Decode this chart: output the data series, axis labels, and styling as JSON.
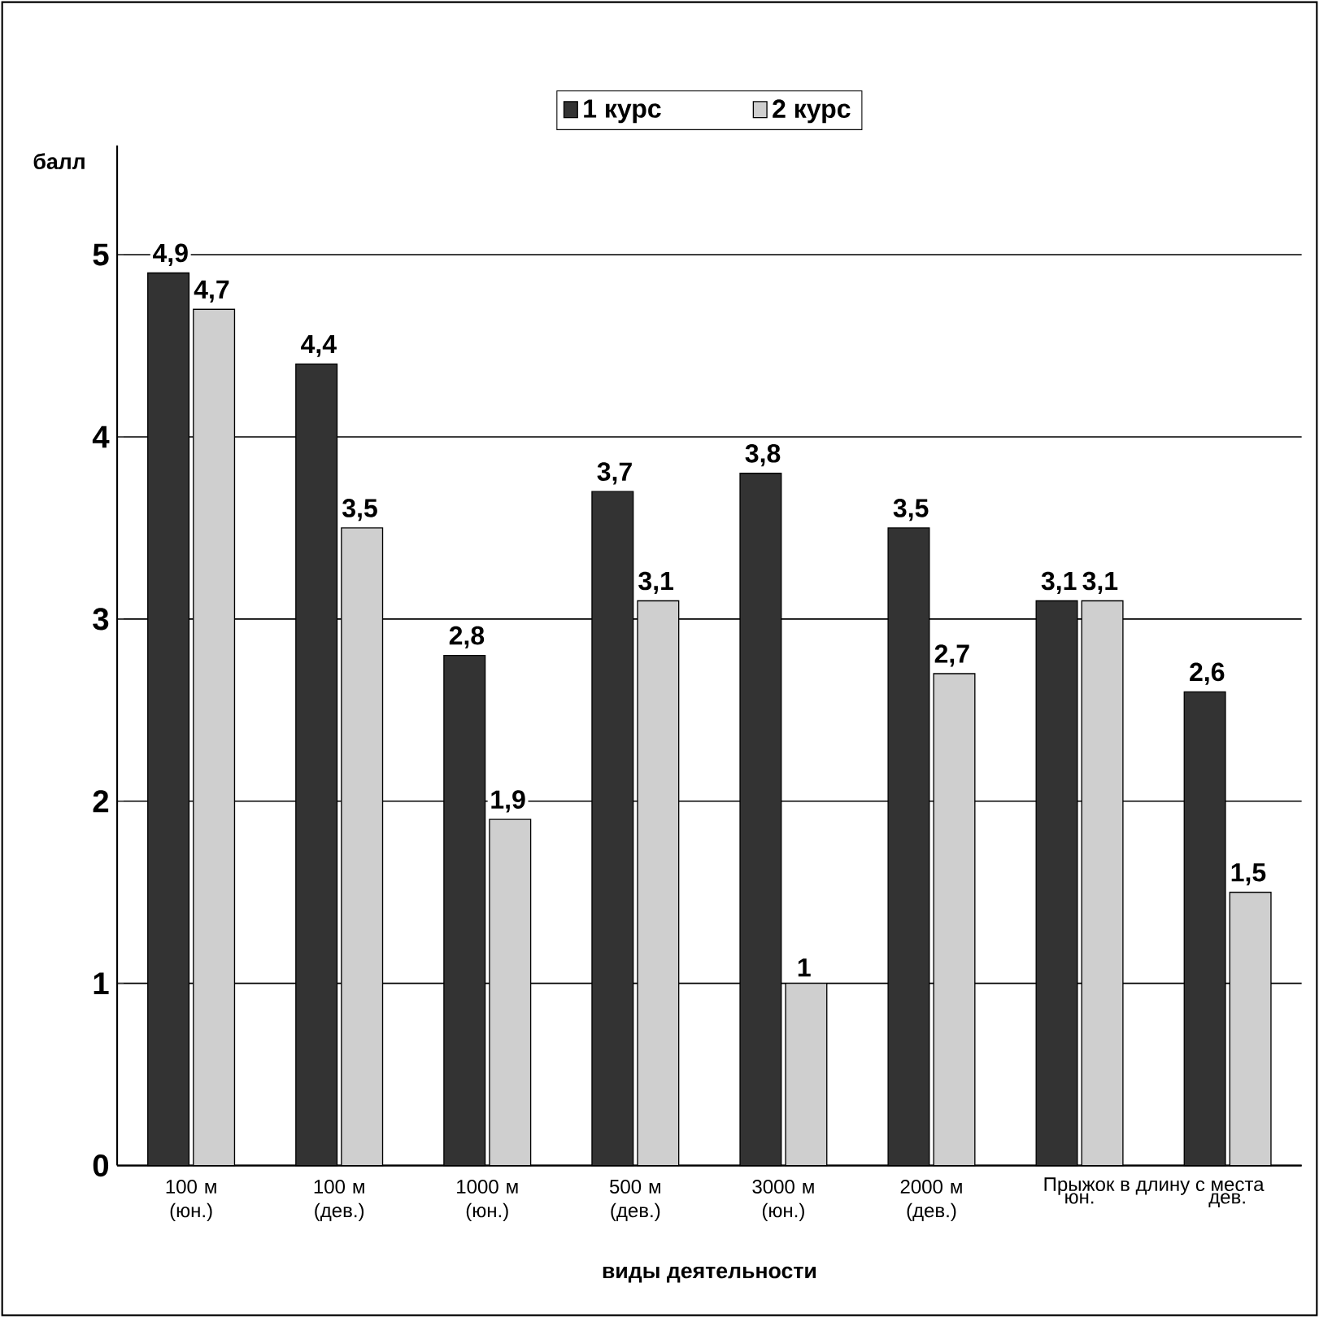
{
  "chart_data": {
    "type": "bar",
    "xlabel": "виды деятельности",
    "ylabel": "балл",
    "categories": [
      "100 м (юн.)",
      "100 м (дев.)",
      "1000 м (юн.)",
      "500 м (дев.)",
      "3000 м (юн.)",
      "2000 м (дев.)",
      "юн.",
      "дев."
    ],
    "series": [
      {
        "name": "1 курс",
        "color": "#333333",
        "values": [
          4.9,
          4.4,
          2.8,
          3.7,
          3.8,
          3.5,
          3.1,
          2.6
        ],
        "value_labels": [
          "4,9",
          "4,4",
          "2,8",
          "3,7",
          "3,8",
          "3,5",
          "3,1",
          "2,6"
        ]
      },
      {
        "name": "2 курс",
        "color": "#cfcfcf",
        "values": [
          4.7,
          3.5,
          1.9,
          3.1,
          1,
          2.7,
          3.1,
          1.5
        ],
        "value_labels": [
          "4,7",
          "3,5",
          "1,9",
          "3,1",
          "1",
          "2,7",
          "3,1",
          "1,5"
        ]
      }
    ],
    "annotations": [
      "Прыжок в длину с места"
    ],
    "ylim": [
      0,
      5.6
    ],
    "yticks": [
      0,
      1,
      2,
      3,
      4,
      5
    ],
    "grid": "y",
    "legend": "top"
  }
}
